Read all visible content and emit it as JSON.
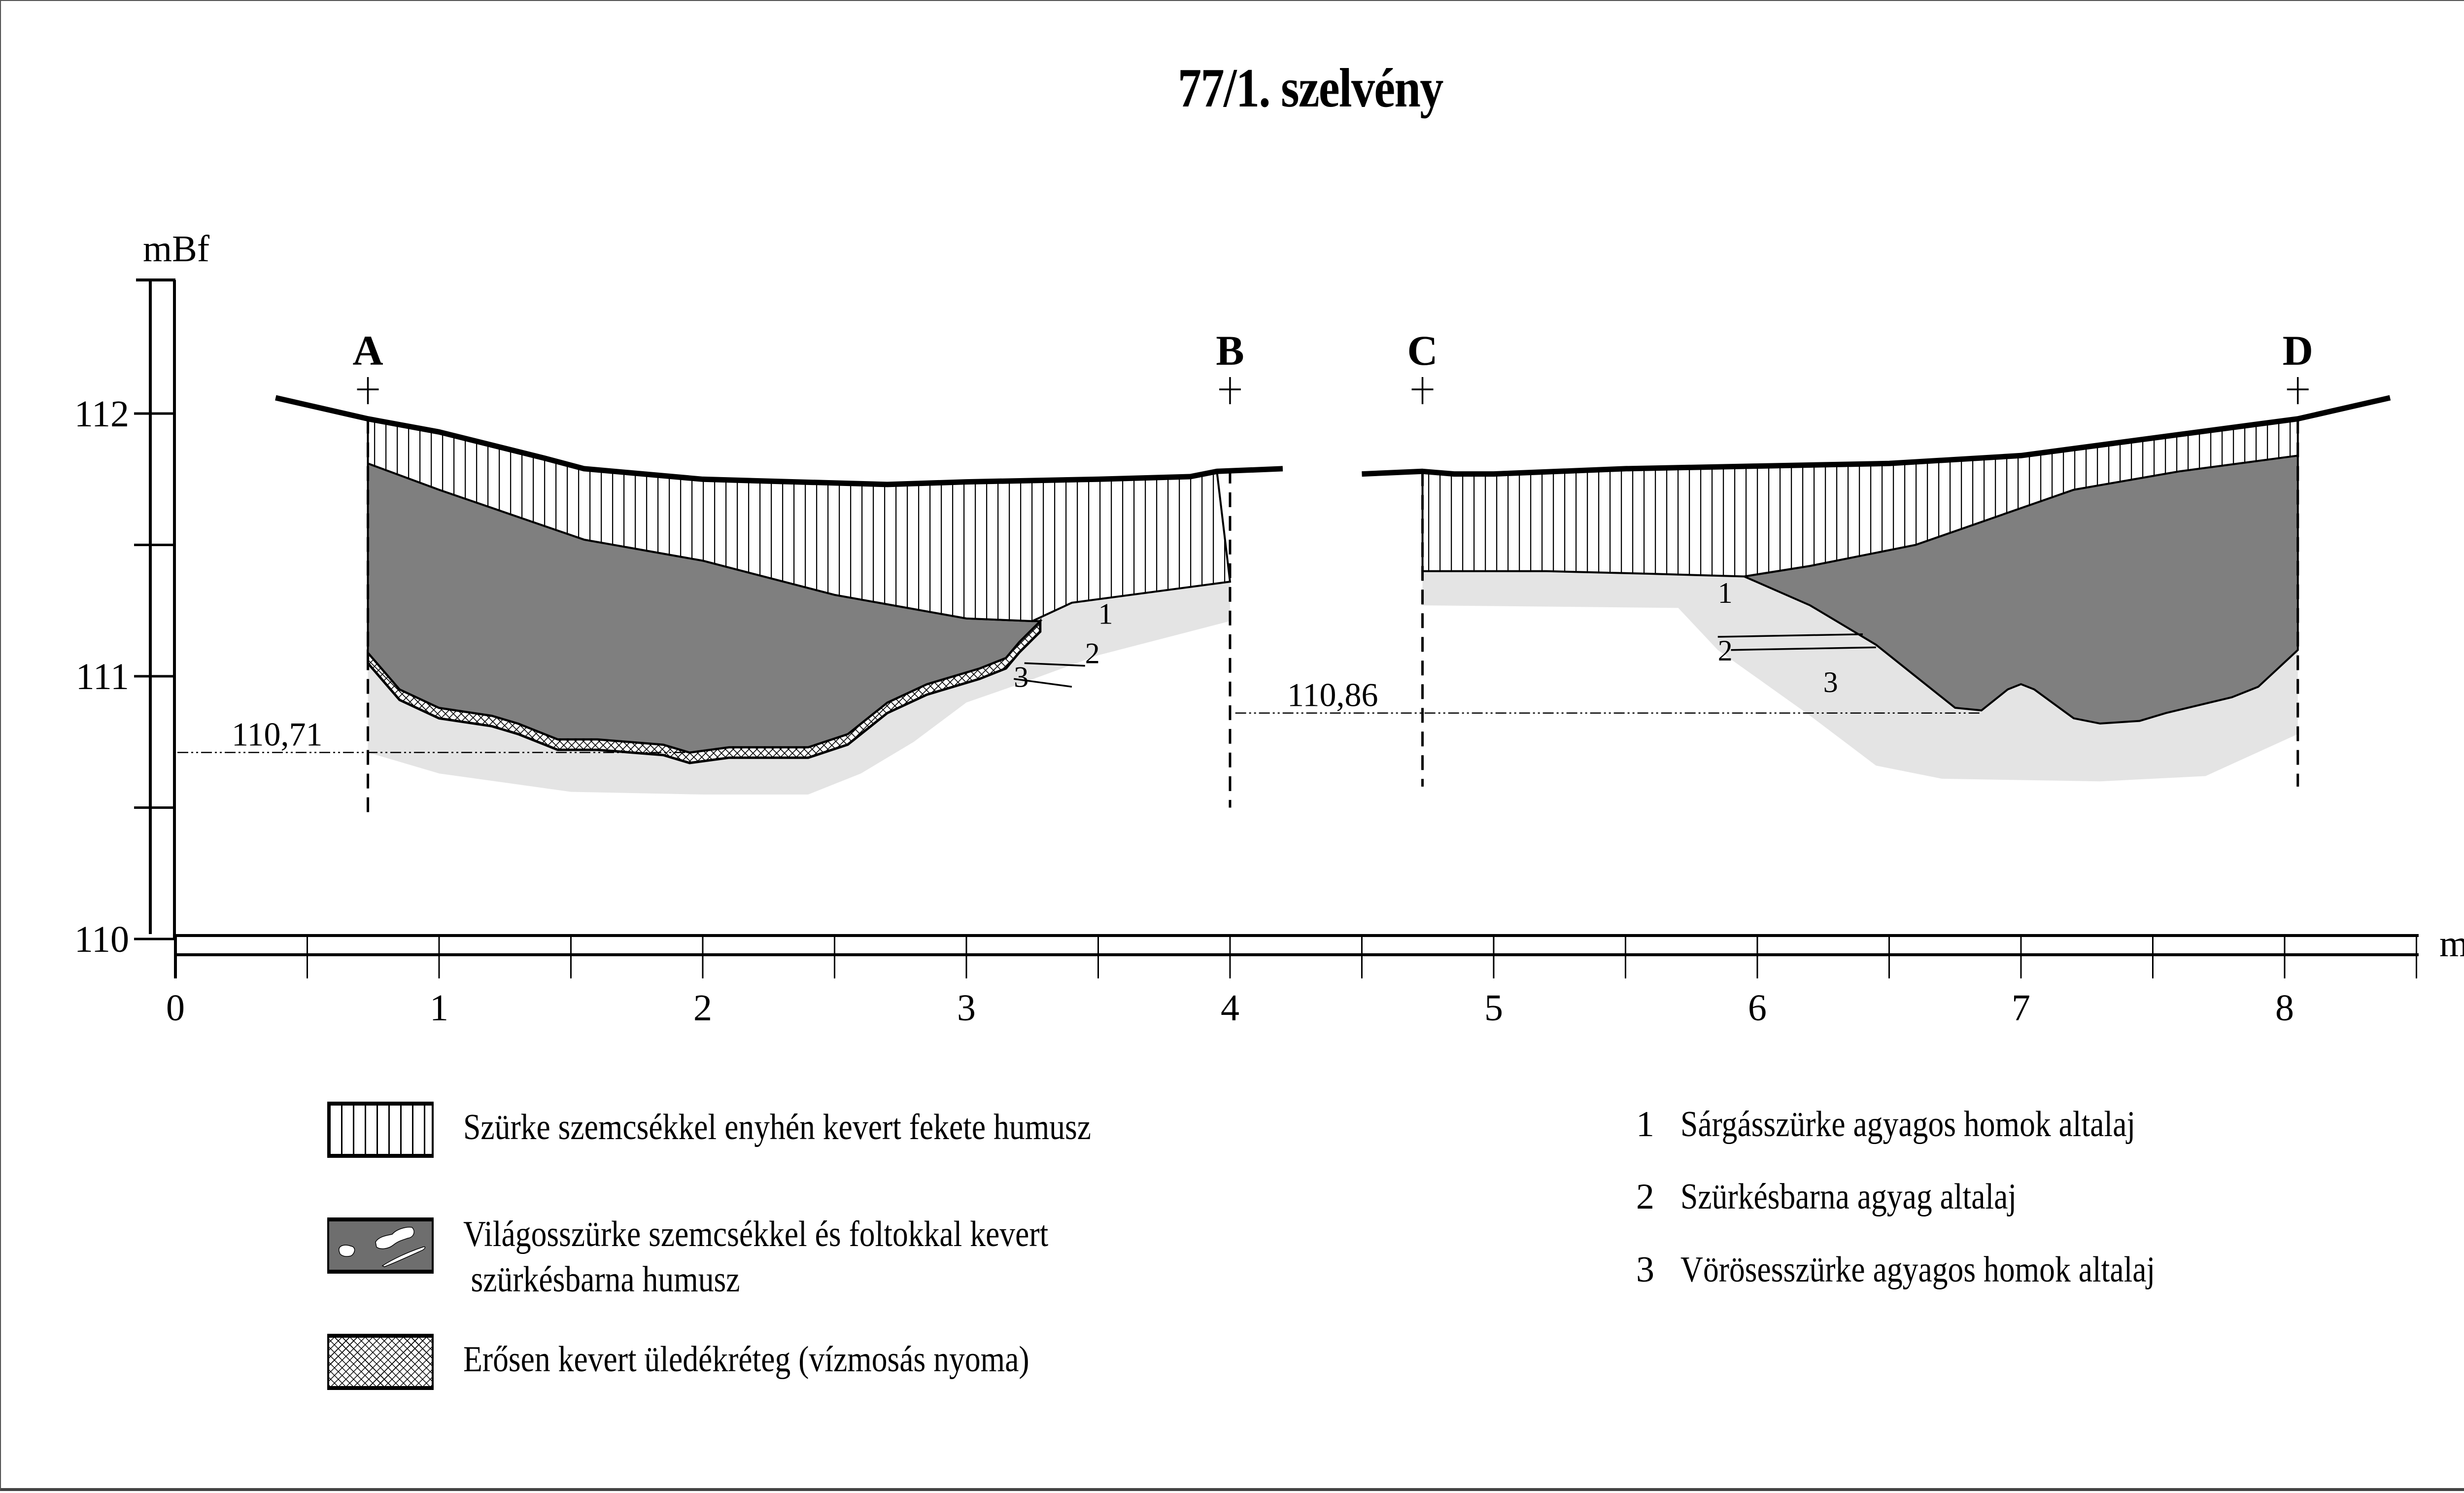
{
  "title": "77/1. szelvény",
  "chart_data": {
    "type": "diagram",
    "subtype": "soil-profile-cross-section",
    "title": "77/1. szelvény",
    "ylabel": "mBf",
    "xlabel": "m",
    "y_ticks": [
      "110",
      "111",
      "112"
    ],
    "y_range": [
      110,
      112.5
    ],
    "x_ticks": [
      "0",
      "1",
      "2",
      "3",
      "4",
      "5",
      "6",
      "7",
      "8"
    ],
    "x_range": [
      0,
      8.5
    ],
    "x_minor_step": 0.5,
    "points": [
      {
        "label": "A",
        "x": 0.73
      },
      {
        "label": "B",
        "x": 4.0
      },
      {
        "label": "C",
        "x": 4.73
      },
      {
        "label": "D",
        "x": 8.05
      }
    ],
    "depth_markers": [
      {
        "label": "110,71",
        "value": 110.71,
        "section": "A-B"
      },
      {
        "label": "110,86",
        "value": 110.86,
        "section": "C-D"
      }
    ],
    "layer_labels": [
      "1",
      "2",
      "3"
    ],
    "sections": [
      {
        "name": "A-B",
        "surface": [
          [
            0.38,
            112.06
          ],
          [
            0.73,
            111.98
          ],
          [
            1.0,
            111.93
          ],
          [
            1.4,
            111.83
          ],
          [
            1.55,
            111.79
          ],
          [
            2.0,
            111.75
          ],
          [
            2.7,
            111.73
          ],
          [
            3.0,
            111.74
          ],
          [
            3.5,
            111.75
          ],
          [
            3.85,
            111.76
          ],
          [
            3.95,
            111.78
          ],
          [
            4.2,
            111.79
          ]
        ],
        "humus_black_bottom": [
          [
            0.73,
            111.81
          ],
          [
            1.0,
            111.71
          ],
          [
            1.55,
            111.52
          ],
          [
            2.0,
            111.44
          ],
          [
            2.5,
            111.31
          ],
          [
            3.0,
            111.22
          ],
          [
            3.25,
            111.21
          ],
          [
            3.4,
            111.28
          ],
          [
            4.0,
            111.36
          ]
        ],
        "humus_grey_bottom": [
          [
            0.73,
            111.09
          ],
          [
            0.85,
            110.95
          ],
          [
            1.0,
            110.88
          ],
          [
            1.2,
            110.85
          ],
          [
            1.3,
            110.82
          ],
          [
            1.45,
            110.76
          ],
          [
            1.6,
            110.76
          ],
          [
            1.85,
            110.74
          ],
          [
            1.95,
            110.71
          ],
          [
            2.1,
            110.73
          ],
          [
            2.4,
            110.73
          ],
          [
            2.55,
            110.78
          ],
          [
            2.7,
            110.9
          ],
          [
            2.85,
            110.97
          ],
          [
            3.05,
            111.03
          ],
          [
            3.15,
            111.07
          ],
          [
            3.2,
            111.13
          ],
          [
            3.28,
            111.21
          ]
        ],
        "sediment_thickness_m": 0.04,
        "subsoil_bottom": [
          [
            0.73,
            110.71
          ],
          [
            1.0,
            110.63
          ],
          [
            1.5,
            110.56
          ],
          [
            2.0,
            110.55
          ],
          [
            2.4,
            110.55
          ],
          [
            2.6,
            110.63
          ],
          [
            2.8,
            110.75
          ],
          [
            3.0,
            110.9
          ],
          [
            3.2,
            110.97
          ],
          [
            3.5,
            111.08
          ],
          [
            4.0,
            111.21
          ]
        ],
        "layer_boundaries": [
          [
            [
              3.22,
              111.05
            ],
            [
              3.45,
              111.04
            ]
          ],
          [
            [
              3.18,
              110.99
            ],
            [
              3.4,
              110.96
            ]
          ]
        ],
        "depth_marker": 110.71
      },
      {
        "name": "C-D",
        "surface": [
          [
            4.5,
            111.77
          ],
          [
            4.73,
            111.78
          ],
          [
            4.85,
            111.77
          ],
          [
            5.0,
            111.77
          ],
          [
            5.5,
            111.79
          ],
          [
            6.0,
            111.8
          ],
          [
            6.5,
            111.81
          ],
          [
            7.0,
            111.84
          ],
          [
            7.3,
            111.88
          ],
          [
            7.6,
            111.92
          ],
          [
            8.05,
            111.98
          ],
          [
            8.4,
            112.06
          ]
        ],
        "humus_black_bottom": [
          [
            4.73,
            111.4
          ],
          [
            5.2,
            111.4
          ],
          [
            5.6,
            111.39
          ],
          [
            5.95,
            111.38
          ],
          [
            6.2,
            111.42
          ],
          [
            6.6,
            111.5
          ],
          [
            7.2,
            111.71
          ],
          [
            7.6,
            111.78
          ],
          [
            8.05,
            111.84
          ]
        ],
        "humus_grey_bottom": [
          [
            5.95,
            111.38
          ],
          [
            6.2,
            111.27
          ],
          [
            6.45,
            111.12
          ],
          [
            6.6,
            111.0
          ],
          [
            6.75,
            110.88
          ],
          [
            6.85,
            110.87
          ],
          [
            6.95,
            110.95
          ],
          [
            7.0,
            110.97
          ],
          [
            7.05,
            110.95
          ],
          [
            7.2,
            110.84
          ],
          [
            7.3,
            110.82
          ],
          [
            7.45,
            110.83
          ],
          [
            7.55,
            110.86
          ],
          [
            7.8,
            110.92
          ],
          [
            7.9,
            110.96
          ],
          [
            8.05,
            111.1
          ]
        ],
        "subsoil_bottom": [
          [
            4.73,
            111.27
          ],
          [
            5.7,
            111.26
          ],
          [
            5.85,
            111.1
          ],
          [
            6.2,
            110.85
          ],
          [
            6.45,
            110.66
          ],
          [
            6.7,
            110.61
          ],
          [
            7.3,
            110.6
          ],
          [
            7.7,
            110.62
          ],
          [
            8.05,
            110.78
          ]
        ],
        "layer_boundaries": [
          [
            [
              5.85,
              111.15
            ],
            [
              6.4,
              111.16
            ]
          ],
          [
            [
              5.9,
              111.1
            ],
            [
              6.45,
              111.11
            ]
          ]
        ],
        "depth_marker": 110.86
      }
    ]
  },
  "axis": {
    "y_unit": "mBf",
    "x_unit": "m",
    "y_labels": [
      "112",
      "111",
      "110"
    ],
    "x_labels": [
      "0",
      "1",
      "2",
      "3",
      "4",
      "5",
      "6",
      "7",
      "8"
    ]
  },
  "markers": {
    "A": "A",
    "B": "B",
    "C": "C",
    "D": "D",
    "depth_ab": "110,71",
    "depth_cd": "110,86",
    "layer1": "1",
    "layer2": "2",
    "layer3": "3"
  },
  "legend": {
    "patterns": [
      {
        "pattern": "vertical-hatch",
        "label": "Szürke szemcsékkel enyhén kevert fekete humusz"
      },
      {
        "pattern": "dark-grey-with-spots",
        "label_line1": "Világosszürke szemcsékkel és foltokkal kevert",
        "label_line2": "szürkésbarna humusz",
        "color": "#7f7f7f"
      },
      {
        "pattern": "cross-hatch",
        "label": "Erősen kevert üledékréteg (vízmosás nyoma)"
      }
    ],
    "numbered": [
      {
        "num": "1",
        "label": "Sárgásszürke agyagos homok altalaj"
      },
      {
        "num": "2",
        "label": "Szürkésbarna agyag altalaj"
      },
      {
        "num": "3",
        "label": "Vörösesszürke agyagos homok altalaj"
      }
    ]
  },
  "colors": {
    "humus_grey": "#7f7f7f",
    "subsoil": "#e4e4e4",
    "line": "#000000"
  }
}
